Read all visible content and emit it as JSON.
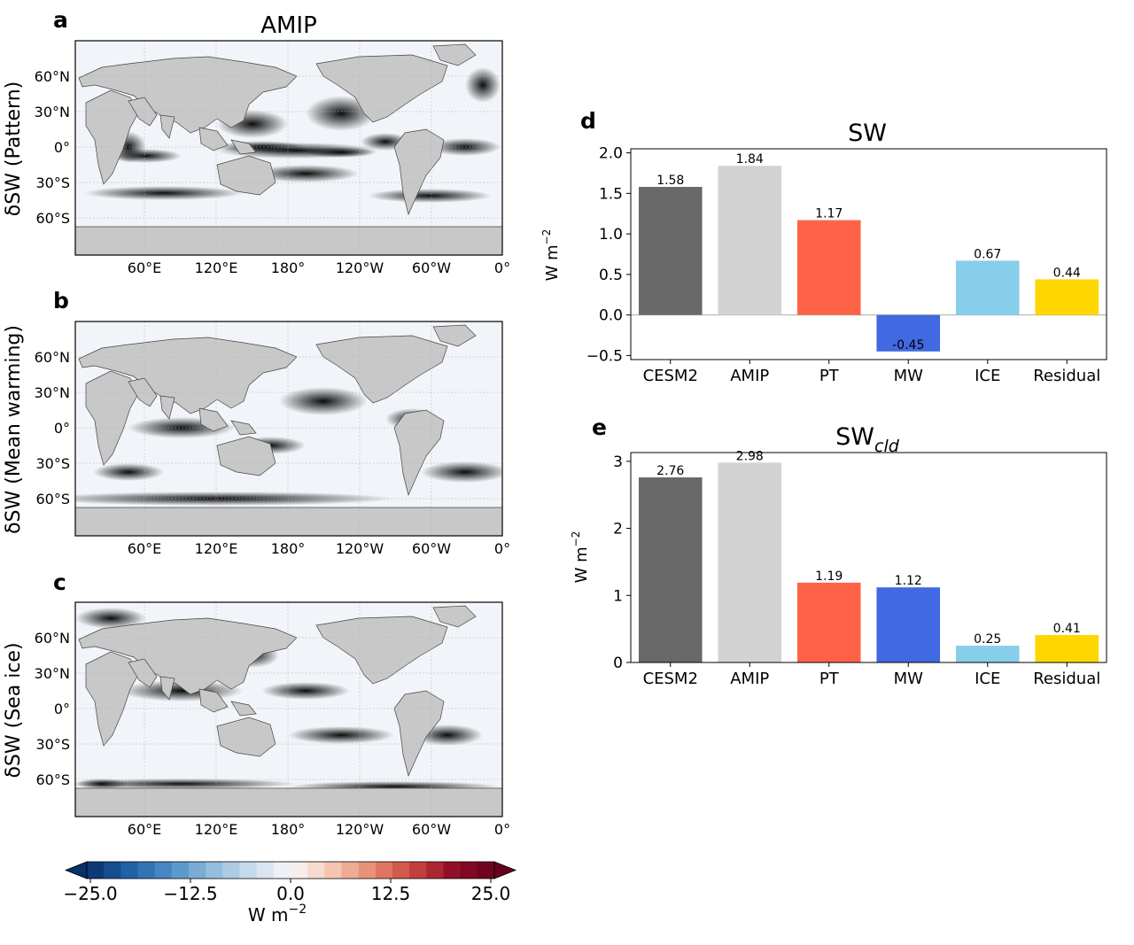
{
  "maps": {
    "panels": [
      {
        "letter": "a",
        "title": "AMIP",
        "ylabel": "δSW (Pattern)"
      },
      {
        "letter": "b",
        "title": "",
        "ylabel": "δSW (Mean warming)"
      },
      {
        "letter": "c",
        "title": "",
        "ylabel": "δSW (Sea ice)"
      }
    ],
    "lat_ticks": [
      "60°N",
      "30°N",
      "0°",
      "30°S",
      "60°S"
    ],
    "lon_ticks": [
      "60°E",
      "120°E",
      "180°",
      "120°W",
      "60°W",
      "0°"
    ],
    "land_color": "#c8c8c8",
    "colorbar": {
      "ticks": [
        "−25.0",
        "−12.5",
        "0.0",
        "12.5",
        "25.0"
      ],
      "label": "W m",
      "label_exp": "−2",
      "min": -25,
      "max": 25,
      "levels": 24,
      "colormap": "RdBu_r"
    }
  },
  "chart_data": [
    {
      "type": "bar",
      "panel_letter": "d",
      "title": "SW",
      "title_sub": "",
      "ylabel": "W m",
      "ylabel_exp": "−2",
      "categories": [
        "CESM2",
        "AMIP",
        "PT",
        "MW",
        "ICE",
        "Residual"
      ],
      "values": [
        1.58,
        1.84,
        1.17,
        -0.45,
        0.67,
        0.44
      ],
      "value_labels": [
        "1.58",
        "1.84",
        "1.17",
        "-0.45",
        "0.67",
        "0.44"
      ],
      "colors": [
        "#696969",
        "#d3d3d3",
        "#ff6347",
        "#4169e1",
        "#87ceeb",
        "#ffd700"
      ],
      "ylim": [
        -0.55,
        2.05
      ],
      "yticks": [
        -0.5,
        0.0,
        0.5,
        1.0,
        1.5,
        2.0
      ],
      "ytick_labels": [
        "−0.5",
        "0.0",
        "0.5",
        "1.0",
        "1.5",
        "2.0"
      ],
      "zero_line": true
    },
    {
      "type": "bar",
      "panel_letter": "e",
      "title": "SW",
      "title_sub": "cld",
      "ylabel": "W m",
      "ylabel_exp": "−2",
      "categories": [
        "CESM2",
        "AMIP",
        "PT",
        "MW",
        "ICE",
        "Residual"
      ],
      "values": [
        2.76,
        2.98,
        1.19,
        1.12,
        0.25,
        0.41
      ],
      "value_labels": [
        "2.76",
        "2.98",
        "1.19",
        "1.12",
        "0.25",
        "0.41"
      ],
      "colors": [
        "#696969",
        "#d3d3d3",
        "#ff6347",
        "#4169e1",
        "#87ceeb",
        "#ffd700"
      ],
      "ylim": [
        0,
        3.13
      ],
      "yticks": [
        0,
        1,
        2,
        3
      ],
      "ytick_labels": [
        "0",
        "1",
        "2",
        "3"
      ],
      "zero_line": false
    }
  ]
}
